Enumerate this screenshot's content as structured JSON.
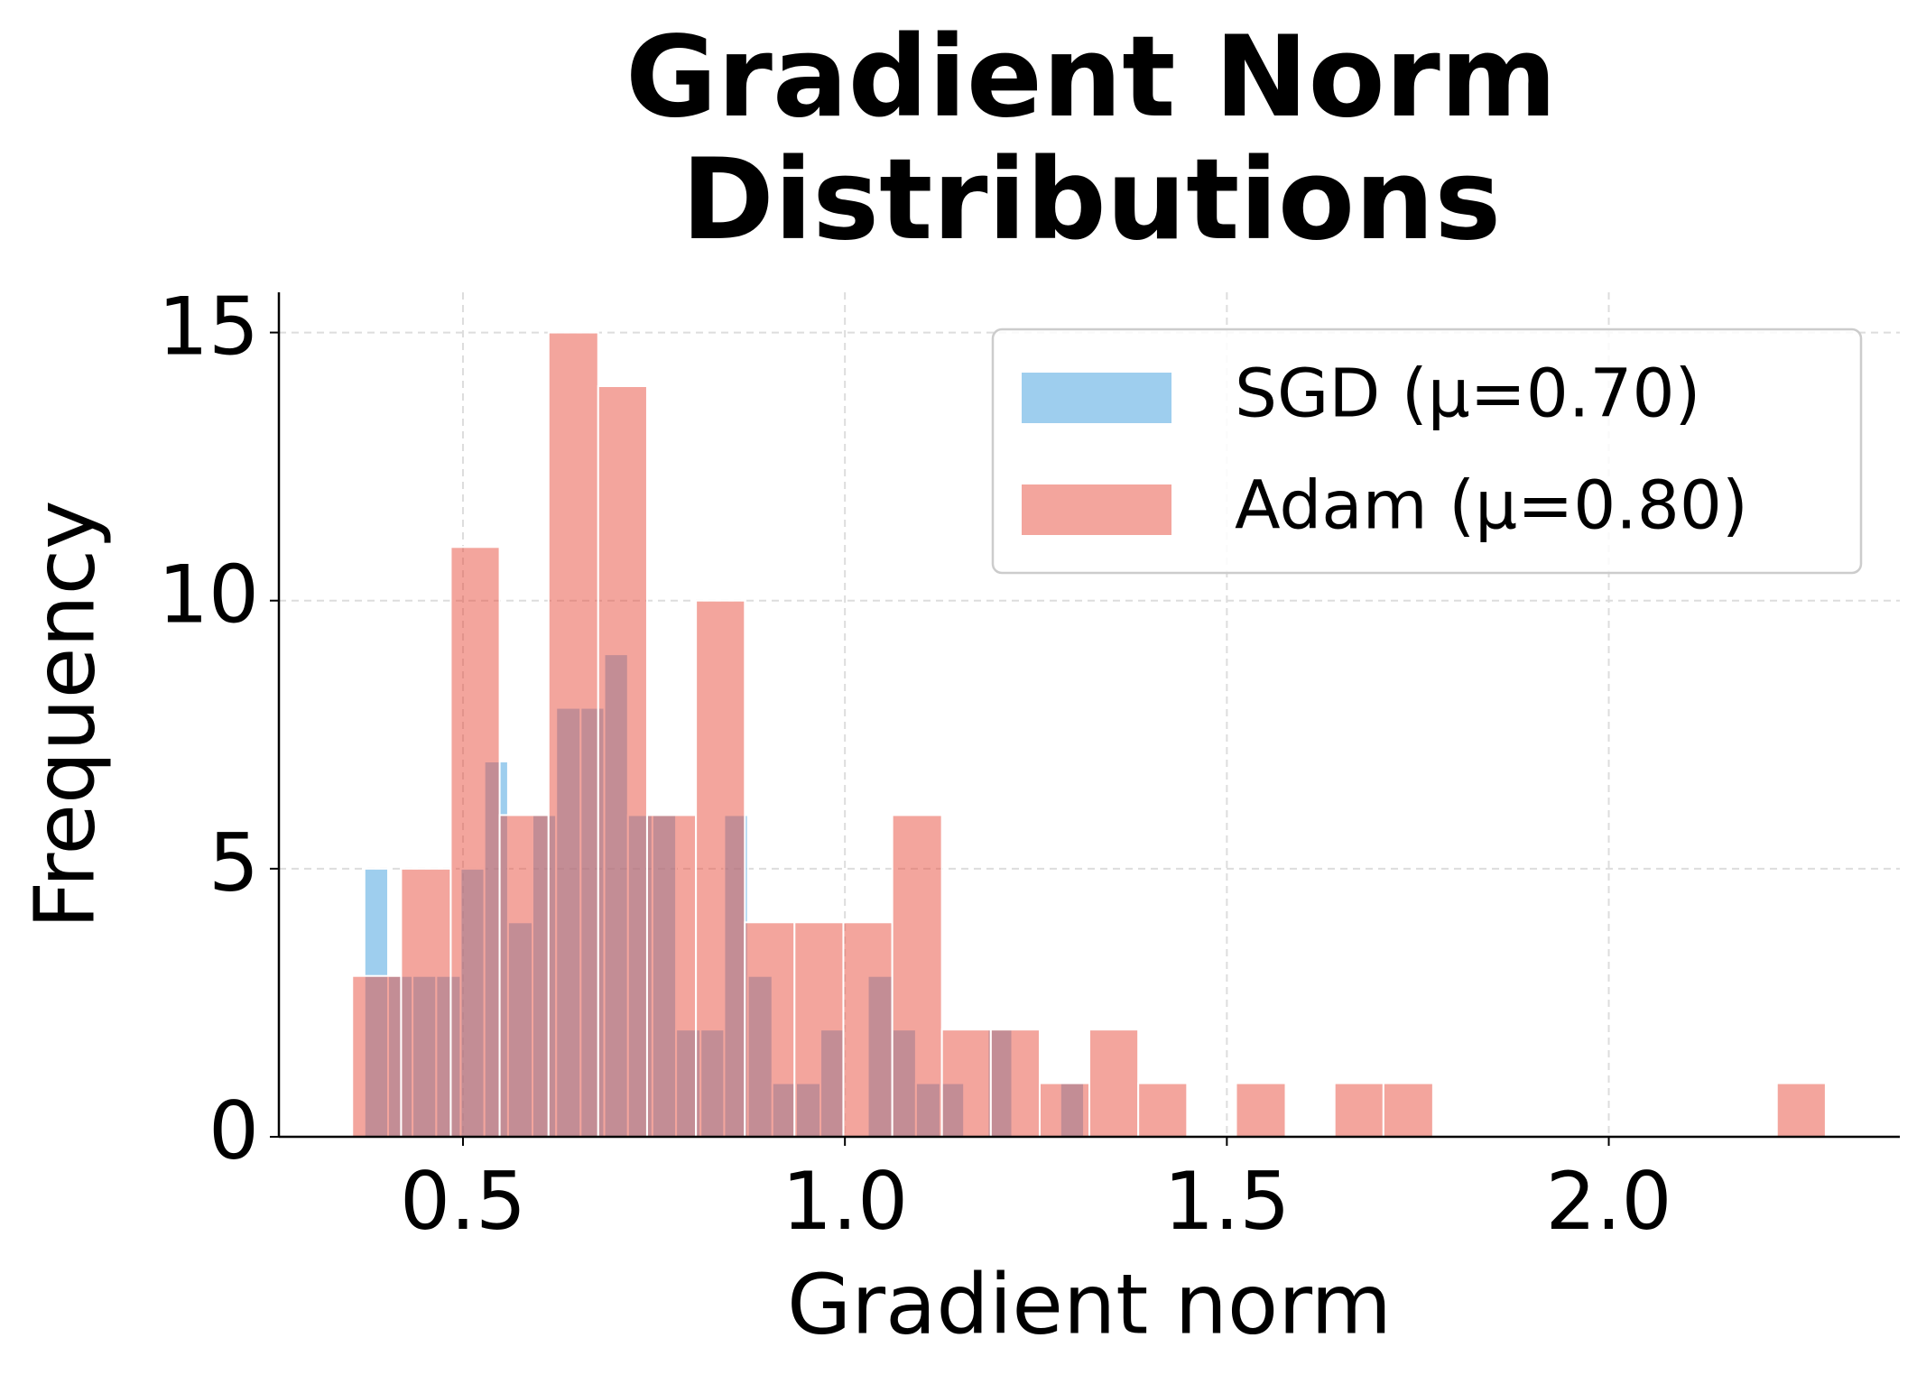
{
  "chart_data": {
    "type": "histogram",
    "title": "Gradient Norm\nDistributions",
    "x_label": "Gradient norm",
    "y_label": "Frequency",
    "xlim": [
      0.259,
      2.381
    ],
    "ylim": [
      0,
      15.75
    ],
    "xticks": [
      0.5,
      {
        "value": 1,
        "label": "1.0"
      },
      1.5,
      {
        "value": 2,
        "label": "2.0"
      }
    ],
    "yticks": [
      0,
      5,
      10,
      15
    ],
    "grid": true,
    "legend": "upper right",
    "series": [
      {
        "name": "SGD (μ=0.70)",
        "color": "#5dade2",
        "opacity": 0.6,
        "bins": [
          0.371,
          0.402,
          0.434,
          0.465,
          0.497,
          0.528,
          0.559,
          0.591,
          0.622,
          0.654,
          0.685,
          0.716,
          0.748,
          0.779,
          0.811,
          0.842,
          0.873,
          0.905,
          0.936,
          0.968,
          0.999,
          1.03,
          1.062,
          1.093,
          1.125,
          1.156,
          1.187,
          1.219,
          1.25,
          1.282,
          1.313
        ],
        "values": [
          5,
          3,
          3,
          3,
          5,
          7,
          4,
          6,
          8,
          8,
          9,
          6,
          6,
          2,
          2,
          6,
          3,
          1,
          1,
          2,
          0,
          3,
          2,
          1,
          1,
          0,
          2,
          0,
          0,
          1
        ]
      },
      {
        "name": "Adam (μ=0.80)",
        "color": "#e74c3c",
        "opacity": 0.5,
        "bins": [
          0.355,
          0.419,
          0.484,
          0.548,
          0.612,
          0.677,
          0.741,
          0.805,
          0.869,
          0.934,
          0.998,
          1.062,
          1.127,
          1.191,
          1.255,
          1.32,
          1.384,
          1.448,
          1.512,
          1.577,
          1.641,
          1.705,
          1.77,
          1.834,
          1.898,
          1.963,
          2.027,
          2.091,
          2.155,
          2.22,
          2.284
        ],
        "values": [
          3,
          5,
          11,
          6,
          15,
          14,
          6,
          10,
          4,
          4,
          4,
          6,
          2,
          2,
          1,
          2,
          1,
          0,
          1,
          0,
          1,
          1,
          0,
          0,
          0,
          0,
          0,
          0,
          0,
          1
        ]
      }
    ]
  }
}
